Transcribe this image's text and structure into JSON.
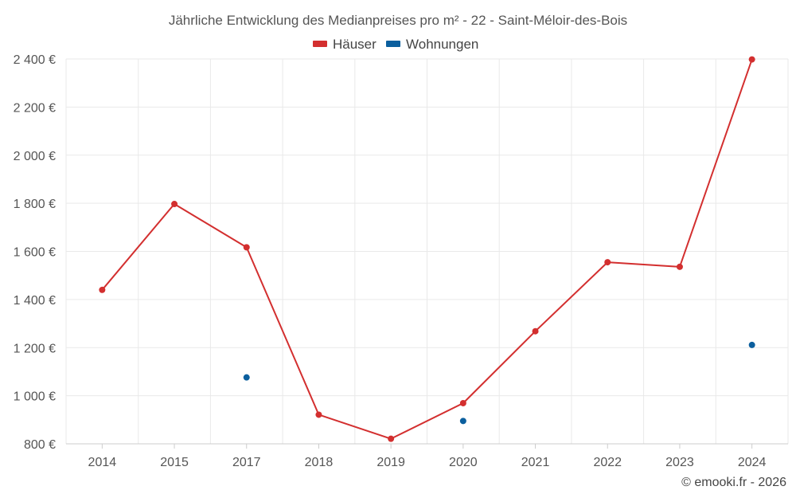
{
  "chart_data": {
    "type": "line",
    "title": "Jährliche Entwicklung des Medianpreises pro m² - 22 - Saint-Méloir-des-Bois",
    "categories": [
      "2014",
      "2015",
      "2017",
      "2018",
      "2019",
      "2020",
      "2021",
      "2022",
      "2023",
      "2024"
    ],
    "series": [
      {
        "name": "Häuser",
        "color": "#d32f2f",
        "values": [
          1440,
          1797,
          1617,
          921,
          821,
          969,
          1268,
          1555,
          1536,
          2398
        ]
      },
      {
        "name": "Wohnungen",
        "color": "#0b5f9e",
        "values": [
          null,
          null,
          1076,
          null,
          null,
          895,
          null,
          null,
          null,
          1211
        ]
      }
    ],
    "ylim": [
      800,
      2400
    ],
    "yticks": [
      800,
      1000,
      1200,
      1400,
      1600,
      1800,
      2000,
      2200,
      2400
    ],
    "ytick_labels": [
      "800 €",
      "1 000 €",
      "1 200 €",
      "1 400 €",
      "1 600 €",
      "1 800 €",
      "2 000 €",
      "2 200 €",
      "2 400 €"
    ],
    "legend_position": "top-center",
    "grid": true
  },
  "credit": "© emooki.fr - 2026"
}
